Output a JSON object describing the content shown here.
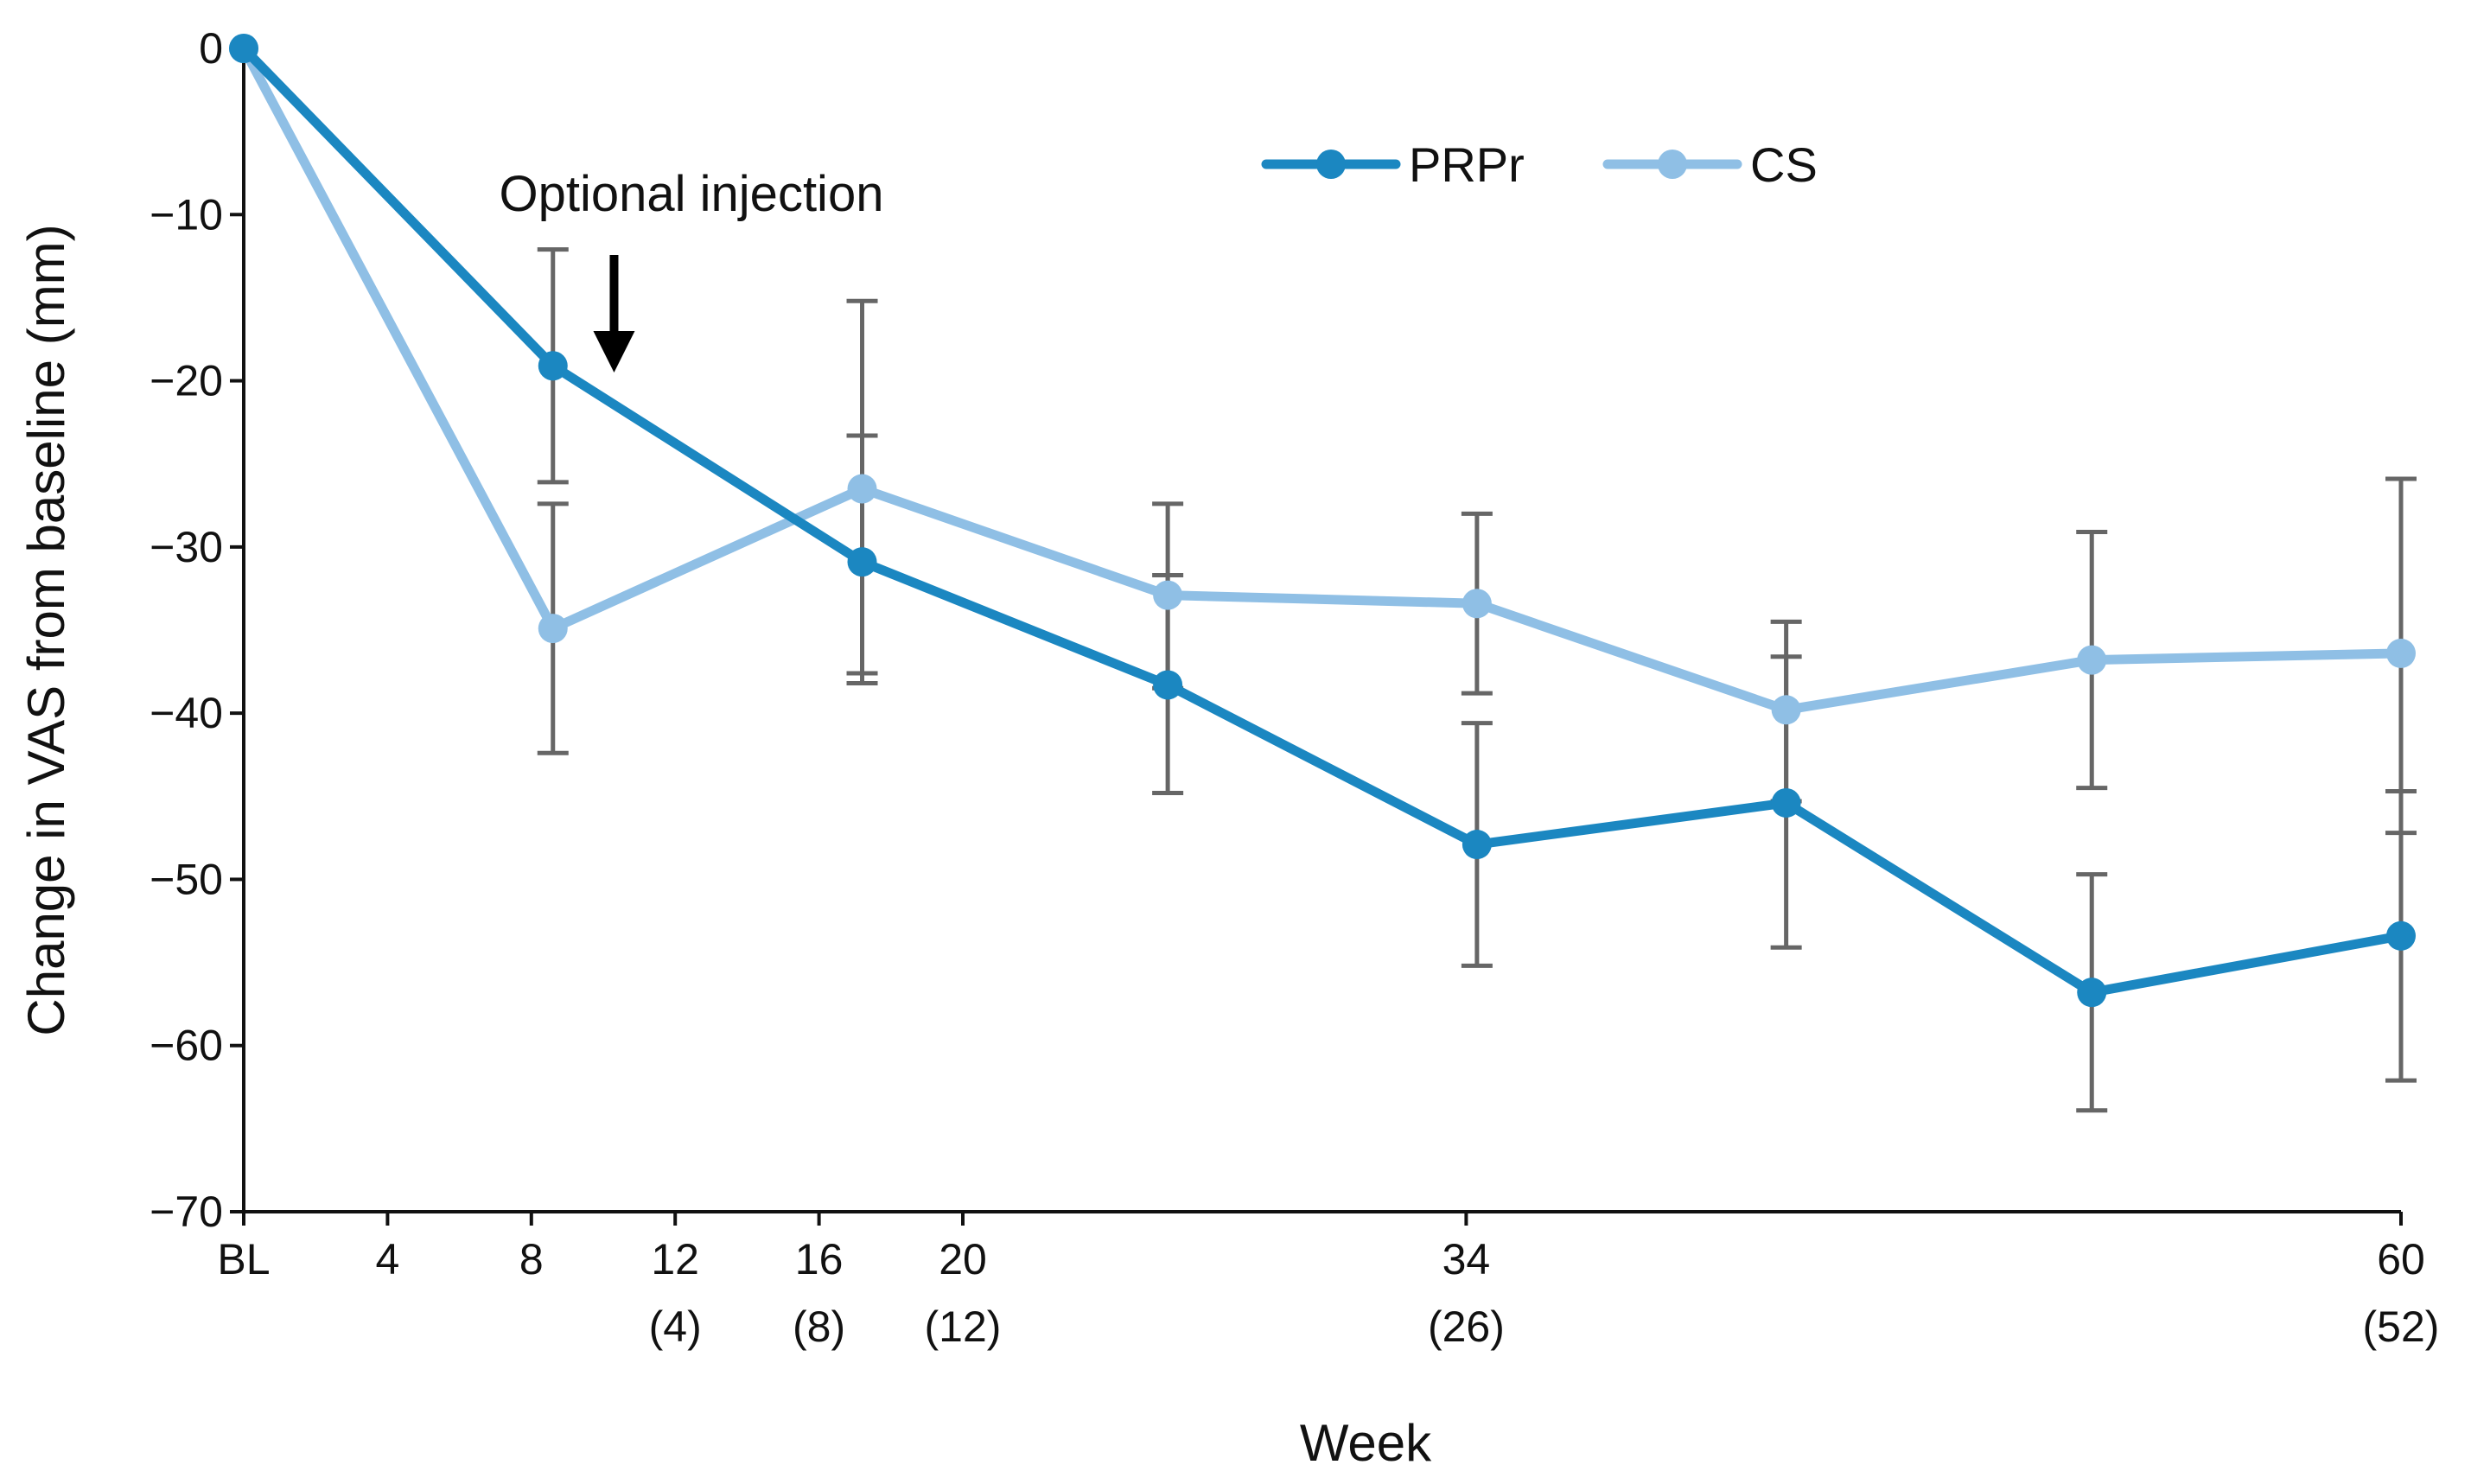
{
  "chart_data": {
    "type": "line",
    "title": "",
    "xlabel": "Week",
    "ylabel": "Change in VAS from baseline (mm)",
    "ylim": [
      -70,
      0
    ],
    "yticks": [
      0,
      -10,
      -20,
      -30,
      -40,
      -50,
      -60,
      -70
    ],
    "ytick_labels": [
      "0",
      "−10",
      "−20",
      "−30",
      "−40",
      "−50",
      "−60",
      "−70"
    ],
    "xlim": [
      0,
      60
    ],
    "xticks": [
      {
        "x": 0,
        "label": "BL",
        "sublabel": ""
      },
      {
        "x": 4,
        "label": "4",
        "sublabel": ""
      },
      {
        "x": 8,
        "label": "8",
        "sublabel": ""
      },
      {
        "x": 12,
        "label": "12",
        "sublabel": "(4)"
      },
      {
        "x": 16,
        "label": "16",
        "sublabel": "(8)"
      },
      {
        "x": 20,
        "label": "20",
        "sublabel": "(12)"
      },
      {
        "x": 34,
        "label": "34",
        "sublabel": "(26)"
      },
      {
        "x": 60,
        "label": "60",
        "sublabel": "(52)"
      }
    ],
    "series": [
      {
        "name": "PRPr",
        "color": "#1b87c1",
        "x": [
          0,
          8.6,
          17.2,
          25.7,
          34.3,
          42.9,
          51.4,
          60
        ],
        "y": [
          0,
          -19.1,
          -30.9,
          -38.3,
          -47.9,
          -45.4,
          -56.8,
          -53.4
        ],
        "err_low": [
          0,
          -26.1,
          -37.6,
          -44.8,
          -55.2,
          -54.1,
          -63.9,
          -62.1
        ],
        "err_high": [
          0,
          -12.1,
          -23.3,
          -31.7,
          -40.6,
          -36.6,
          -49.7,
          -44.7
        ]
      },
      {
        "name": "CS",
        "color": "#8fbfe5",
        "x": [
          0,
          8.6,
          17.2,
          25.7,
          34.3,
          42.9,
          51.4,
          60
        ],
        "y": [
          0,
          -34.9,
          -26.5,
          -32.9,
          -33.4,
          -39.8,
          -36.8,
          -36.4
        ],
        "err_low": [
          0,
          -42.4,
          -38.2,
          -38.5,
          -38.8,
          -45.3,
          -44.5,
          -47.2
        ],
        "err_high": [
          0,
          -27.4,
          -15.2,
          -27.4,
          -28.0,
          -34.5,
          -29.1,
          -25.9
        ]
      }
    ],
    "annotation": {
      "text": "Optional injection",
      "x": 10.3,
      "y": -19.5
    },
    "error_bar_color": "#666666"
  }
}
